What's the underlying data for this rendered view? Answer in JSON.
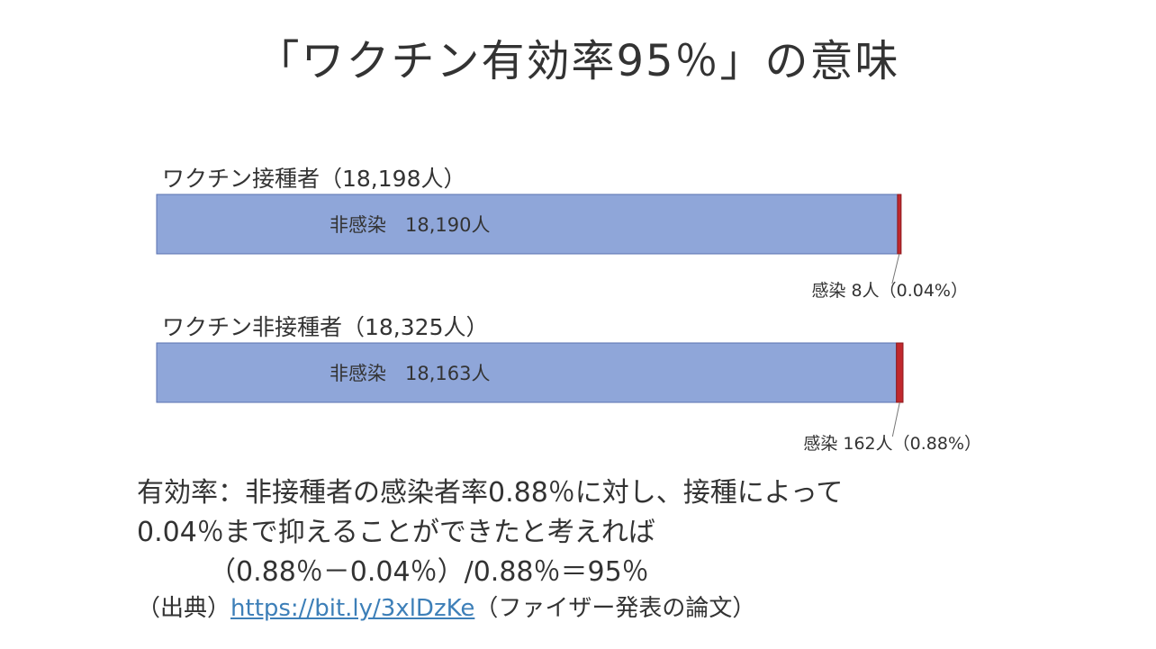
{
  "title": "「ワクチン有効率95％」の意味",
  "chart_data": {
    "type": "bar",
    "orientation": "horizontal",
    "stacked": true,
    "categories": [
      "ワクチン接種者（18,198人）",
      "ワクチン非接種者（18,325人）"
    ],
    "series": [
      {
        "name": "非感染",
        "values": [
          18190,
          18163
        ],
        "color": "#8fa6d9"
      },
      {
        "name": "感染",
        "values": [
          8,
          162
        ],
        "color": "#c0282d"
      }
    ],
    "bar_labels": [
      "非感染　18,190人",
      "非感染　18,163人"
    ],
    "infection_labels": [
      "感染 8人（0.04%）",
      "感染 162人（0.88%）"
    ],
    "grid": false
  },
  "body": {
    "line1": "有効率：非接種者の感染者率0.88％に対し、接種によって",
    "line2": "0.04％まで抑えることができたと考えれば",
    "line3": "（0.88％－0.04％）/0.88％＝95％"
  },
  "source": {
    "prefix": "（出典）",
    "link": "https://bit.ly/3xlDzKe",
    "suffix": "（ファイザー発表の論文）"
  }
}
